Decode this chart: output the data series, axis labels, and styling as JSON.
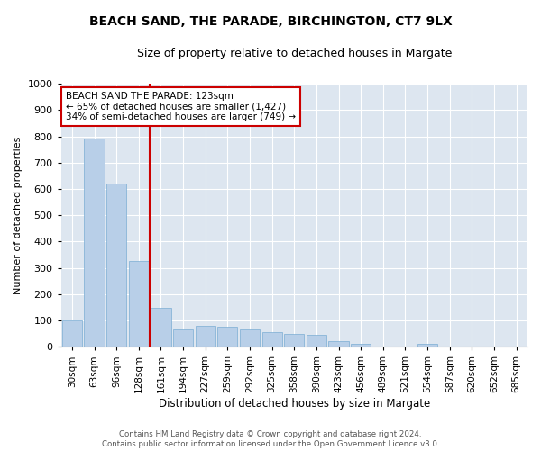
{
  "title1": "BEACH SAND, THE PARADE, BIRCHINGTON, CT7 9LX",
  "title2": "Size of property relative to detached houses in Margate",
  "xlabel": "Distribution of detached houses by size in Margate",
  "ylabel": "Number of detached properties",
  "categories": [
    "30sqm",
    "63sqm",
    "96sqm",
    "128sqm",
    "161sqm",
    "194sqm",
    "227sqm",
    "259sqm",
    "292sqm",
    "325sqm",
    "358sqm",
    "390sqm",
    "423sqm",
    "456sqm",
    "489sqm",
    "521sqm",
    "554sqm",
    "587sqm",
    "620sqm",
    "652sqm",
    "685sqm"
  ],
  "values": [
    100,
    790,
    620,
    325,
    148,
    65,
    80,
    75,
    65,
    55,
    50,
    45,
    20,
    10,
    0,
    0,
    10,
    0,
    0,
    0,
    0
  ],
  "bar_color": "#b8cfe8",
  "bar_edgecolor": "#7aadd4",
  "vline_x": 3.5,
  "vline_color": "#cc0000",
  "annotation_text": "BEACH SAND THE PARADE: 123sqm\n← 65% of detached houses are smaller (1,427)\n34% of semi-detached houses are larger (749) →",
  "annotation_box_color": "#ffffff",
  "annotation_box_edgecolor": "#cc0000",
  "ylim": [
    0,
    1000
  ],
  "yticks": [
    0,
    100,
    200,
    300,
    400,
    500,
    600,
    700,
    800,
    900,
    1000
  ],
  "background_color": "#dde6f0",
  "footer": "Contains HM Land Registry data © Crown copyright and database right 2024.\nContains public sector information licensed under the Open Government Licence v3.0.",
  "title1_fontsize": 10,
  "title2_fontsize": 9,
  "xlabel_fontsize": 8.5,
  "ylabel_fontsize": 8,
  "annot_fontsize": 7.5,
  "tick_fontsize": 7.5,
  "ytick_fontsize": 8
}
